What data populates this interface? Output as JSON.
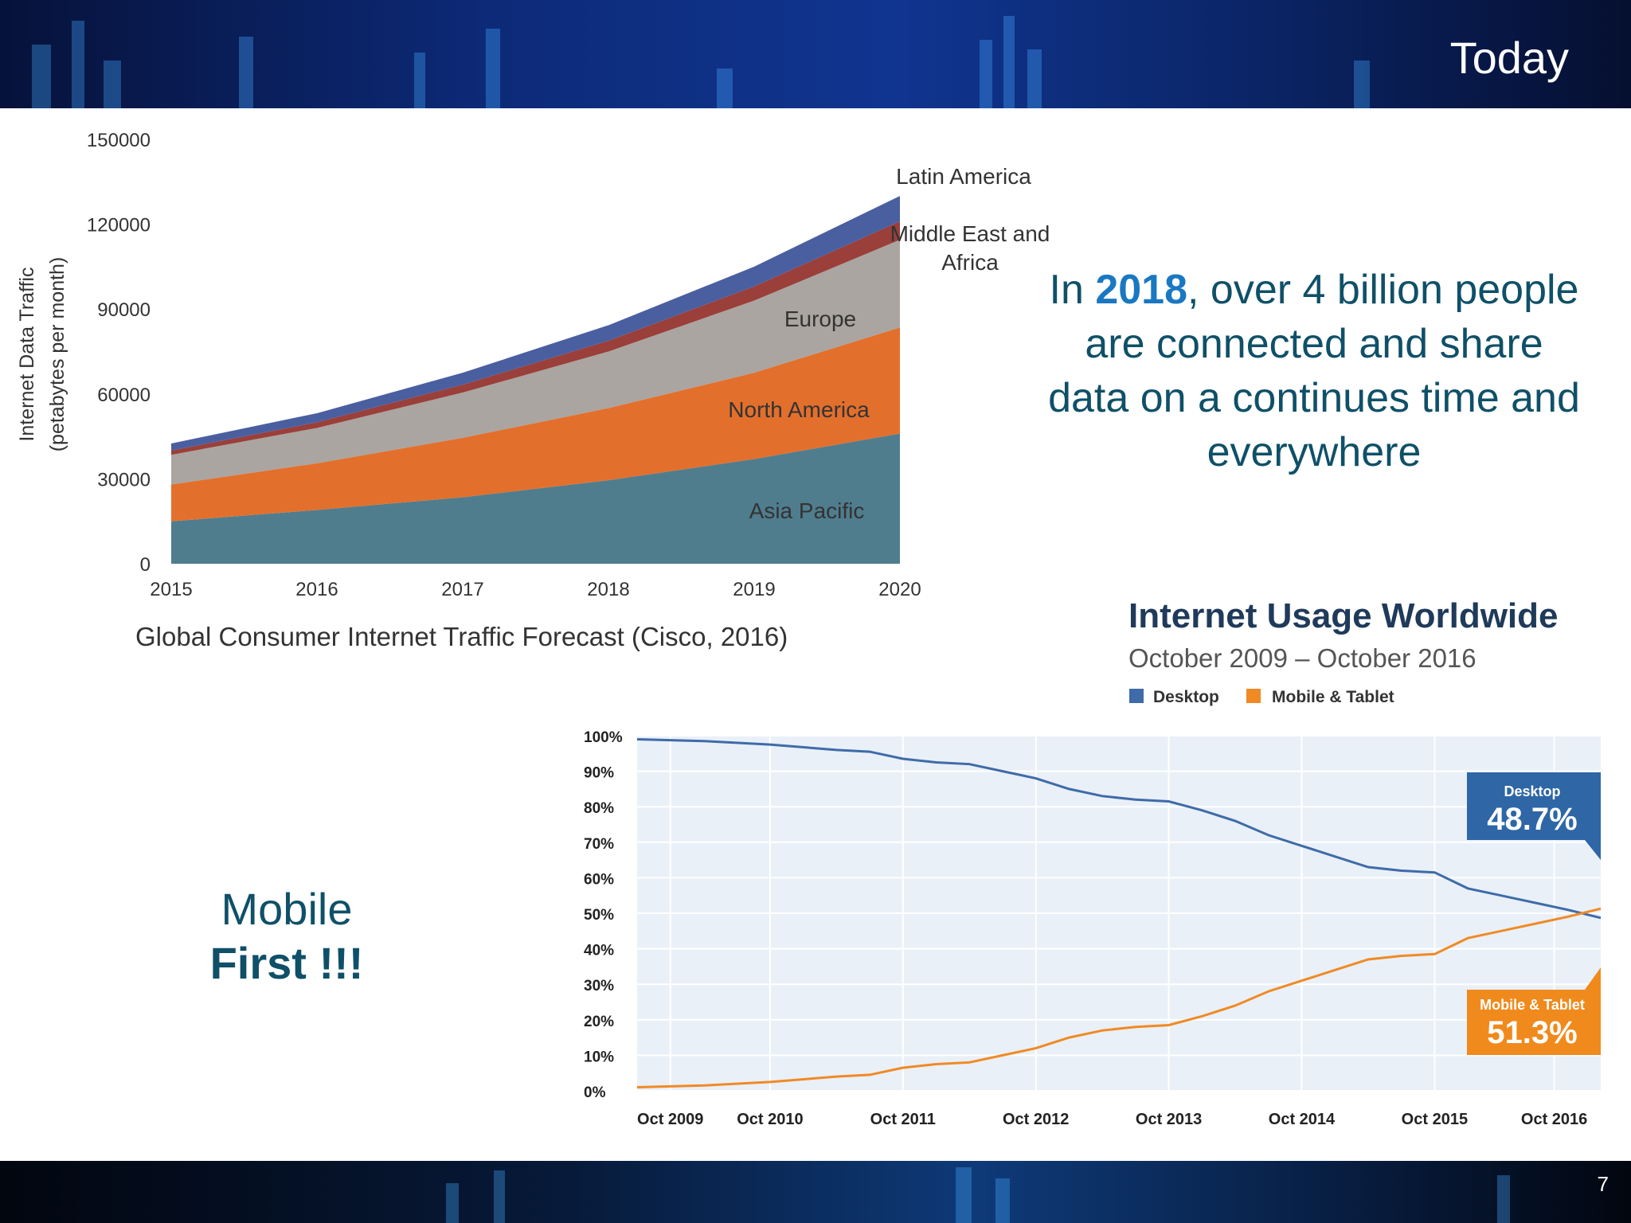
{
  "slide": {
    "title": "Today",
    "page_number": "7",
    "stat_text": {
      "prefix": "In ",
      "year": "2018",
      "suffix": ", over 4 billion people are connected and share data on a continues time and everywhere"
    },
    "mobile_text": {
      "line1": "Mobile",
      "line2": "First !!!"
    },
    "colors": {
      "heading_teal": "#0f5068",
      "highlight_blue": "#1a78c2"
    }
  },
  "chart_data": [
    {
      "type": "area",
      "stacked": true,
      "title": "Global Consumer Internet Traffic Forecast (Cisco, 2016)",
      "xlabel": "",
      "ylabel": "Internet Data Traffic (petabytes per month)",
      "ylabel_lines": [
        "Internet Data Traffic",
        "(petabytes per month)"
      ],
      "x": [
        2015,
        2016,
        2017,
        2018,
        2019,
        2020
      ],
      "ylim": [
        0,
        150000
      ],
      "yticks": [
        0,
        30000,
        60000,
        90000,
        120000,
        150000
      ],
      "grid": false,
      "series": [
        {
          "name": "Asia Pacific",
          "color": "#4f7d8e",
          "values": [
            15000,
            19000,
            23500,
            29500,
            37000,
            46000
          ]
        },
        {
          "name": "North America",
          "color": "#e36f2c",
          "values": [
            13000,
            16500,
            21000,
            25500,
            30500,
            37500
          ]
        },
        {
          "name": "Europe",
          "color": "#aaa5a0",
          "values": [
            10500,
            12500,
            16000,
            20000,
            25500,
            31000
          ]
        },
        {
          "name": "Middle East and Africa",
          "color": "#9a3f3a",
          "values": [
            1500,
            2000,
            2800,
            3800,
            5000,
            6500
          ]
        },
        {
          "name": "Latin America",
          "color": "#4a5fa0",
          "values": [
            2500,
            3200,
            4200,
            5500,
            7000,
            9000
          ]
        }
      ]
    },
    {
      "type": "line",
      "title": "Internet Usage Worldwide",
      "subtitle": "October 2009 – October 2016",
      "xlabel": "",
      "ylabel": "",
      "ylim": [
        0,
        100
      ],
      "yticks": [
        "0%",
        "10%",
        "20%",
        "30%",
        "40%",
        "50%",
        "60%",
        "70%",
        "80%",
        "90%",
        "100%"
      ],
      "xticks": [
        "Oct 2009",
        "Oct 2010",
        "Oct 2011",
        "Oct 2012",
        "Oct 2013",
        "Oct 2014",
        "Oct 2015",
        "Oct 2016"
      ],
      "x": [
        2009.5,
        2010.0,
        2010.5,
        2011.0,
        2011.25,
        2011.5,
        2011.75,
        2012.0,
        2012.25,
        2012.5,
        2012.75,
        2013.0,
        2013.25,
        2013.5,
        2013.75,
        2014.0,
        2014.25,
        2014.5,
        2014.75,
        2015.0,
        2015.25,
        2015.5,
        2015.75,
        2016.0,
        2016.25,
        2016.5,
        2016.75
      ],
      "grid": true,
      "legend": "top",
      "series": [
        {
          "name": "Desktop",
          "color": "#3f6ba8",
          "values": [
            99,
            98.5,
            97.5,
            96,
            95.5,
            93.5,
            92.5,
            92,
            90,
            88,
            85,
            83,
            82,
            81.5,
            79,
            76,
            72,
            69,
            66,
            63,
            62,
            61.5,
            57,
            55,
            53,
            51,
            48.7
          ]
        },
        {
          "name": "Mobile & Tablet",
          "color": "#f08a24",
          "values": [
            1,
            1.5,
            2.5,
            4,
            4.5,
            6.5,
            7.5,
            8,
            10,
            12,
            15,
            17,
            18,
            18.5,
            21,
            24,
            28,
            31,
            34,
            37,
            38,
            38.5,
            43,
            45,
            47,
            49,
            51.3
          ]
        }
      ],
      "callouts": [
        {
          "label": "Desktop",
          "value": "48.7%",
          "color": "#2e66a6"
        },
        {
          "label": "Mobile & Tablet",
          "value": "51.3%",
          "color": "#f08a1c"
        }
      ],
      "plot_background": "#e9f0f8"
    }
  ]
}
